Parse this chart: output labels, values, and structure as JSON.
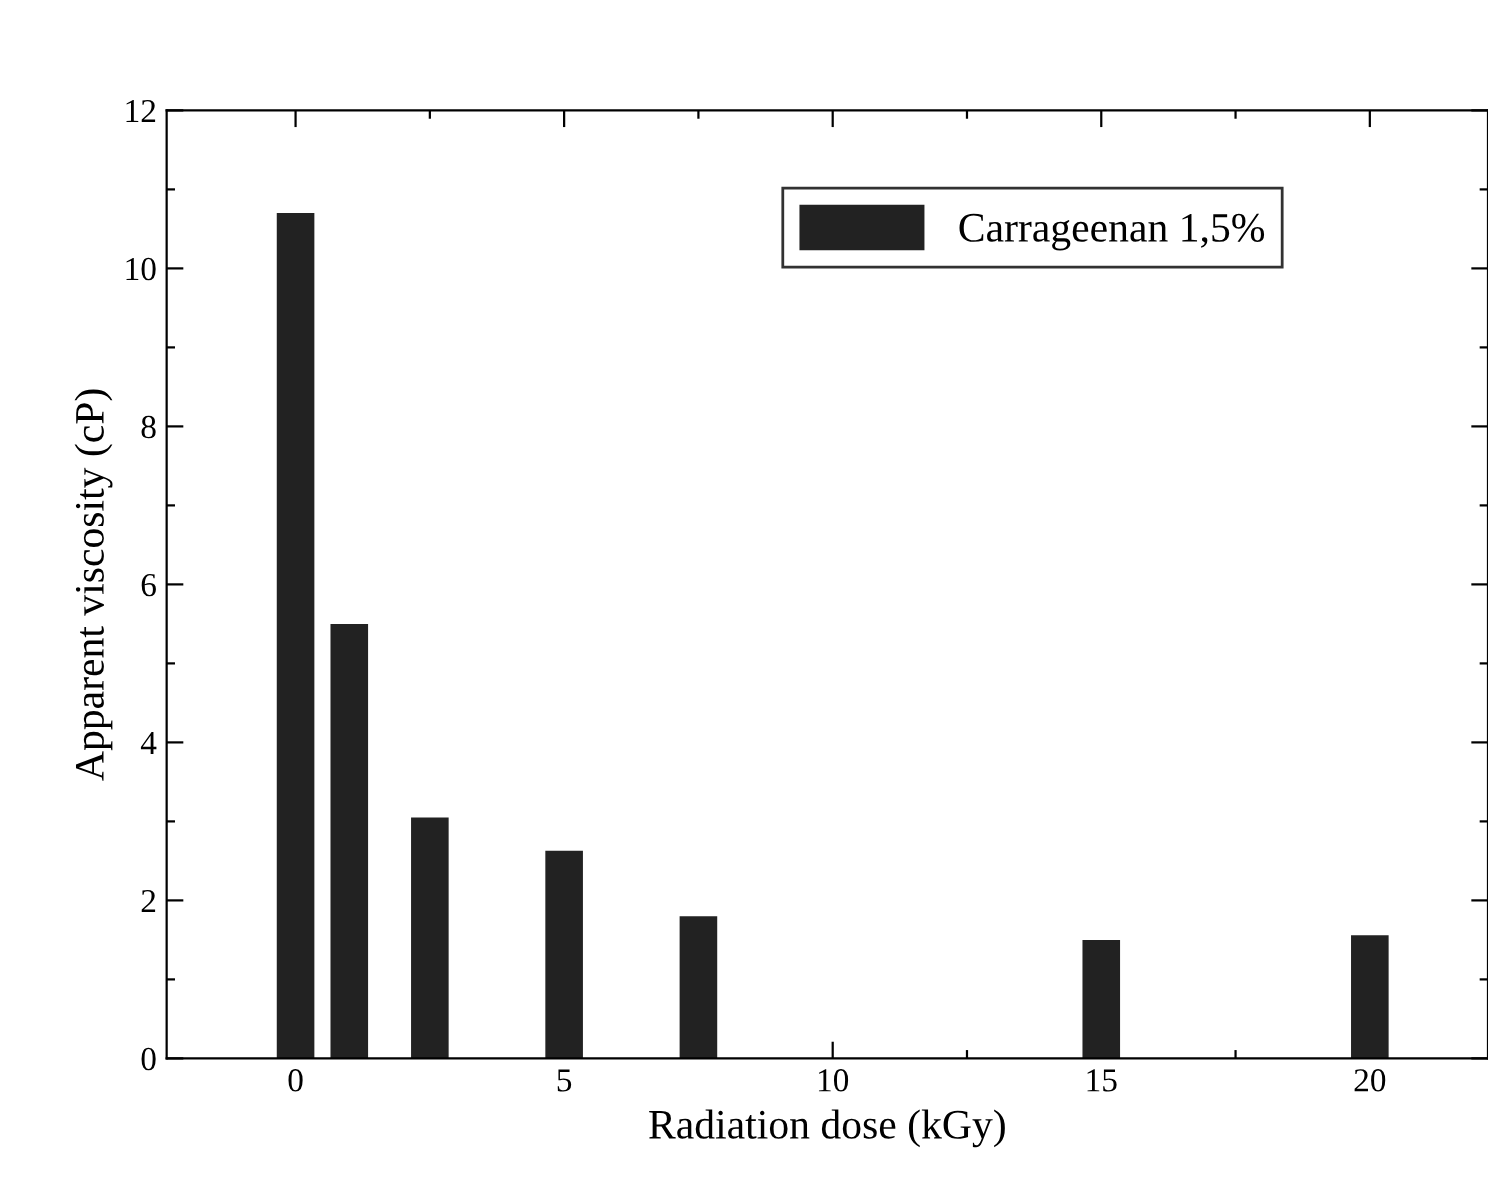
{
  "chart_data": {
    "type": "bar",
    "xlabel": "Radiation dose (kGy)",
    "ylabel": "Apparent viscosity (cP)",
    "x": [
      0,
      1,
      2.5,
      5,
      7.5,
      15,
      20
    ],
    "series": [
      {
        "name": "Carrageenan 1,5%",
        "color": "#222222",
        "values": [
          10.7,
          5.5,
          3.05,
          2.63,
          1.8,
          1.5,
          1.56
        ]
      }
    ],
    "xlim": [
      -2.4,
      22.2
    ],
    "ylim": [
      0,
      12
    ],
    "xticks": [
      0,
      {
        "value": 2.5,
        "label": null
      },
      5,
      {
        "value": 7.5,
        "label": null
      },
      10,
      {
        "value": 12.5,
        "label": null
      },
      15,
      {
        "value": 17.5,
        "label": null
      },
      20
    ],
    "yticks": [
      0,
      {
        "value": 1,
        "label": null
      },
      2,
      {
        "value": 3,
        "label": null
      },
      4,
      {
        "value": 5,
        "label": null
      },
      6,
      {
        "value": 7,
        "label": null
      },
      8,
      {
        "value": 9,
        "label": null
      },
      10,
      {
        "value": 11,
        "label": null
      },
      12
    ],
    "legend": "top right",
    "grid": false
  }
}
